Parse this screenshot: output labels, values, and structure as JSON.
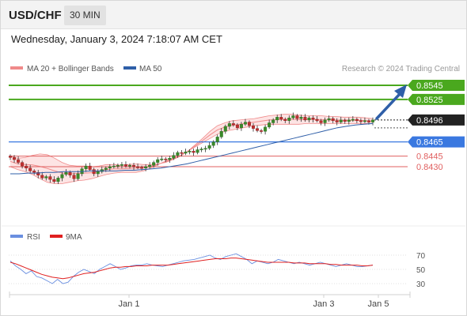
{
  "header": {
    "symbol": "USD/CHF",
    "timeframe": "30 MIN"
  },
  "datetime": "Wednesday, January 3, 2024 7:18:07 AM CET",
  "credit": "Research © 2024 Trading Central",
  "colors": {
    "bollinger": "#f08a8a",
    "bollinger_fill": "#fde4e4",
    "ma50": "#2f5fa8",
    "resistance": "#4aa81e",
    "pivot": "#3a78e0",
    "support": "#e06060",
    "current": "#222222",
    "rsi": "#6a8fe0",
    "rsi_ma": "#e02020",
    "arrow": "#2f5fa8"
  },
  "chart_data": [
    {
      "type": "candlestick",
      "legend": [
        {
          "label": "MA 20 + Bollinger Bands",
          "color": "#f08a8a"
        },
        {
          "label": "MA 50",
          "color": "#2f5fa8"
        }
      ],
      "ylim": [
        0.8405,
        0.8565
      ],
      "levels": [
        {
          "value": 0.8545,
          "label": "0.8545",
          "kind": "resistance"
        },
        {
          "value": 0.8525,
          "label": "0.8525",
          "kind": "resistance"
        },
        {
          "value": 0.8496,
          "label": "0.8496",
          "kind": "current"
        },
        {
          "value": 0.8465,
          "label": "0.8465",
          "kind": "pivot"
        },
        {
          "value": 0.8445,
          "label": "0.8445",
          "kind": "support"
        },
        {
          "value": 0.843,
          "label": "0.8430",
          "kind": "support"
        }
      ],
      "closes": [
        0.8443,
        0.844,
        0.8436,
        0.8431,
        0.8428,
        0.8424,
        0.8422,
        0.8418,
        0.8414,
        0.8416,
        0.8412,
        0.8409,
        0.8414,
        0.8419,
        0.8422,
        0.8418,
        0.8413,
        0.842,
        0.8427,
        0.8431,
        0.8426,
        0.842,
        0.8423,
        0.8426,
        0.8428,
        0.843,
        0.8431,
        0.8432,
        0.8433,
        0.8431,
        0.8432,
        0.843,
        0.8429,
        0.8428,
        0.843,
        0.8432,
        0.8436,
        0.844,
        0.8441,
        0.844,
        0.8442,
        0.8446,
        0.845,
        0.8449,
        0.8451,
        0.8452,
        0.845,
        0.8454,
        0.8455,
        0.8456,
        0.846,
        0.8465,
        0.8472,
        0.848,
        0.8487,
        0.8491,
        0.8489,
        0.8485,
        0.849,
        0.8493,
        0.8488,
        0.8484,
        0.8481,
        0.848,
        0.8486,
        0.8492,
        0.8496,
        0.85,
        0.8497,
        0.8495,
        0.8499,
        0.8502,
        0.8498,
        0.85,
        0.8496,
        0.8499,
        0.8497,
        0.8495,
        0.8492,
        0.8496,
        0.8498,
        0.8495,
        0.8493,
        0.8496,
        0.8494,
        0.8496,
        0.8497,
        0.8495,
        0.8494,
        0.8495,
        0.8493,
        0.8496
      ],
      "bollinger_upper": [
        0.8445,
        0.8442,
        0.8443,
        0.8446,
        0.8448,
        0.8447,
        0.8442,
        0.8436,
        0.8432,
        0.8431,
        0.8431,
        0.843,
        0.8431,
        0.8433,
        0.8433,
        0.8432,
        0.8433,
        0.8434,
        0.8433,
        0.8433,
        0.8434,
        0.8436,
        0.844,
        0.8445,
        0.8452,
        0.8461,
        0.847,
        0.848,
        0.8488,
        0.8492,
        0.8495,
        0.8496,
        0.8497,
        0.8498,
        0.85,
        0.8502,
        0.8503,
        0.8504,
        0.8504,
        0.8503,
        0.8502,
        0.8502,
        0.8502,
        0.8501,
        0.8501,
        0.85,
        0.85,
        0.85,
        0.8499,
        0.8498
      ],
      "bollinger_lower": [
        0.843,
        0.8426,
        0.8423,
        0.8419,
        0.8413,
        0.8408,
        0.8406,
        0.8406,
        0.8408,
        0.841,
        0.8411,
        0.8413,
        0.8416,
        0.8419,
        0.8421,
        0.8422,
        0.8422,
        0.8422,
        0.8424,
        0.8428,
        0.8433,
        0.8438,
        0.8442,
        0.8446,
        0.8452,
        0.8458,
        0.8464,
        0.847,
        0.8476,
        0.848,
        0.8482,
        0.8484,
        0.8486,
        0.8488,
        0.8489,
        0.849,
        0.849,
        0.849,
        0.849,
        0.849,
        0.8491,
        0.8491,
        0.8491,
        0.8491,
        0.8491,
        0.8491,
        0.8491,
        0.8491,
        0.8491,
        0.8491
      ],
      "ma50": [
        0.842,
        0.842,
        0.8421,
        0.8421,
        0.8422,
        0.8422,
        0.8423,
        0.8423,
        0.8423,
        0.8424,
        0.8424,
        0.8424,
        0.8424,
        0.8425,
        0.8425,
        0.8426,
        0.8427,
        0.8428,
        0.843,
        0.8432,
        0.8434,
        0.8437,
        0.844,
        0.8443,
        0.8446,
        0.8449,
        0.8452,
        0.8455,
        0.8458,
        0.8461,
        0.8464,
        0.8467,
        0.847,
        0.8473,
        0.8476,
        0.8479,
        0.8482,
        0.8485,
        0.8487,
        0.8489,
        0.849,
        0.8491
      ]
    },
    {
      "type": "line",
      "legend": [
        {
          "label": "RSI",
          "color": "#6a8fe0"
        },
        {
          "label": "9MA",
          "color": "#e02020"
        }
      ],
      "ylim": [
        20,
        80
      ],
      "yticks": [
        70,
        50,
        30
      ],
      "xticks": [
        "Jan 1",
        "Jan 3",
        "Jan 5"
      ],
      "rsi": [
        62,
        55,
        50,
        44,
        48,
        40,
        38,
        34,
        30,
        36,
        30,
        32,
        40,
        46,
        50,
        47,
        44,
        50,
        54,
        58,
        54,
        50,
        52,
        55,
        56,
        56,
        58,
        56,
        55,
        54,
        56,
        58,
        60,
        62,
        63,
        64,
        66,
        68,
        70,
        66,
        64,
        68,
        70,
        72,
        68,
        64,
        58,
        62,
        60,
        58,
        60,
        64,
        62,
        60,
        58,
        60,
        58,
        56,
        58,
        60,
        58,
        56,
        54,
        56,
        58,
        56,
        54,
        54,
        55,
        56
      ],
      "rsi_ma": [
        60,
        58,
        55,
        52,
        49,
        46,
        43,
        41,
        39,
        38,
        37,
        38,
        40,
        42,
        44,
        45,
        46,
        48,
        50,
        52,
        53,
        53,
        54,
        54,
        55,
        55,
        55,
        56,
        56,
        56,
        56,
        57,
        58,
        59,
        60,
        61,
        62,
        63,
        64,
        65,
        65,
        65,
        66,
        66,
        65,
        64,
        63,
        62,
        61,
        60,
        60,
        60,
        60,
        60,
        59,
        59,
        59,
        58,
        58,
        58,
        58,
        57,
        57,
        56,
        56,
        56,
        56,
        55,
        55,
        56
      ]
    }
  ]
}
